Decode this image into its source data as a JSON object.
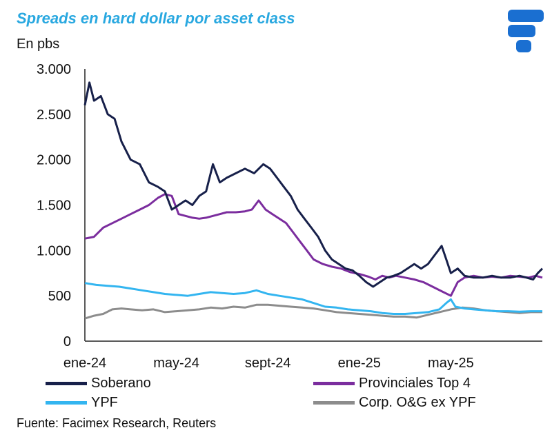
{
  "header": {
    "title": "Spreads en hard dollar por asset class",
    "unit_label": "En pbs"
  },
  "footer": {
    "source": "Fuente: Facimex Research, Reuters"
  },
  "colors": {
    "soberano": "#17204a",
    "provinciales": "#7b2d9e",
    "ypf": "#33b5f0",
    "corp": "#8c8c8c",
    "logo": "#1a6fd1"
  },
  "chart_data": {
    "type": "line",
    "title": "Spreads en hard dollar por asset class",
    "ylabel": "En pbs",
    "xlabel": "",
    "ylim": [
      0,
      3000
    ],
    "yticks": [
      0,
      500,
      1000,
      1500,
      2000,
      2500,
      3000
    ],
    "ytick_labels": [
      "0",
      "500",
      "1.000",
      "1.500",
      "2.000",
      "2.500",
      "3.000"
    ],
    "xlim": [
      0,
      20
    ],
    "xticks": [
      0,
      4,
      8,
      12,
      16
    ],
    "xtick_labels": [
      "ene-24",
      "may-24",
      "sept-24",
      "ene-25",
      "may-25"
    ],
    "x_unit": "months since Jan-2024",
    "legend_position": "bottom",
    "series": [
      {
        "name": "Soberano",
        "color": "#17204a",
        "points": [
          [
            0,
            2600
          ],
          [
            0.2,
            2850
          ],
          [
            0.4,
            2650
          ],
          [
            0.7,
            2700
          ],
          [
            1.0,
            2500
          ],
          [
            1.3,
            2450
          ],
          [
            1.6,
            2200
          ],
          [
            2.0,
            2000
          ],
          [
            2.4,
            1950
          ],
          [
            2.8,
            1750
          ],
          [
            3.2,
            1700
          ],
          [
            3.5,
            1650
          ],
          [
            3.8,
            1450
          ],
          [
            4.1,
            1500
          ],
          [
            4.4,
            1550
          ],
          [
            4.7,
            1500
          ],
          [
            5.0,
            1600
          ],
          [
            5.3,
            1650
          ],
          [
            5.6,
            1950
          ],
          [
            5.9,
            1750
          ],
          [
            6.2,
            1800
          ],
          [
            6.6,
            1850
          ],
          [
            7.0,
            1900
          ],
          [
            7.4,
            1850
          ],
          [
            7.8,
            1950
          ],
          [
            8.1,
            1900
          ],
          [
            8.4,
            1800
          ],
          [
            8.7,
            1700
          ],
          [
            9.0,
            1600
          ],
          [
            9.3,
            1450
          ],
          [
            9.6,
            1350
          ],
          [
            9.9,
            1250
          ],
          [
            10.2,
            1150
          ],
          [
            10.5,
            1000
          ],
          [
            10.8,
            900
          ],
          [
            11.1,
            850
          ],
          [
            11.4,
            800
          ],
          [
            11.7,
            780
          ],
          [
            12.0,
            720
          ],
          [
            12.3,
            650
          ],
          [
            12.6,
            600
          ],
          [
            12.9,
            650
          ],
          [
            13.2,
            700
          ],
          [
            13.5,
            720
          ],
          [
            13.8,
            750
          ],
          [
            14.1,
            800
          ],
          [
            14.4,
            850
          ],
          [
            14.7,
            800
          ],
          [
            15.0,
            850
          ],
          [
            15.3,
            950
          ],
          [
            15.6,
            1050
          ],
          [
            15.8,
            900
          ],
          [
            16.0,
            750
          ],
          [
            16.3,
            800
          ],
          [
            16.6,
            720
          ],
          [
            17.0,
            700
          ],
          [
            17.4,
            700
          ],
          [
            17.8,
            720
          ],
          [
            18.2,
            700
          ],
          [
            18.6,
            700
          ],
          [
            19.0,
            720
          ],
          [
            19.3,
            700
          ],
          [
            19.6,
            680
          ],
          [
            19.8,
            750
          ],
          [
            20.0,
            800
          ]
        ]
      },
      {
        "name": "Provinciales Top 4",
        "color": "#7b2d9e",
        "points": [
          [
            0,
            1130
          ],
          [
            0.4,
            1150
          ],
          [
            0.8,
            1250
          ],
          [
            1.2,
            1300
          ],
          [
            1.6,
            1350
          ],
          [
            2.0,
            1400
          ],
          [
            2.4,
            1450
          ],
          [
            2.8,
            1500
          ],
          [
            3.2,
            1580
          ],
          [
            3.5,
            1620
          ],
          [
            3.8,
            1600
          ],
          [
            4.1,
            1400
          ],
          [
            4.4,
            1380
          ],
          [
            4.7,
            1360
          ],
          [
            5.0,
            1350
          ],
          [
            5.3,
            1360
          ],
          [
            5.6,
            1380
          ],
          [
            5.9,
            1400
          ],
          [
            6.2,
            1420
          ],
          [
            6.6,
            1420
          ],
          [
            7.0,
            1430
          ],
          [
            7.3,
            1450
          ],
          [
            7.6,
            1550
          ],
          [
            7.9,
            1450
          ],
          [
            8.2,
            1400
          ],
          [
            8.5,
            1350
          ],
          [
            8.8,
            1300
          ],
          [
            9.1,
            1200
          ],
          [
            9.4,
            1100
          ],
          [
            9.7,
            1000
          ],
          [
            10.0,
            900
          ],
          [
            10.4,
            850
          ],
          [
            10.8,
            820
          ],
          [
            11.2,
            800
          ],
          [
            11.6,
            760
          ],
          [
            12.0,
            740
          ],
          [
            12.4,
            710
          ],
          [
            12.7,
            680
          ],
          [
            13.0,
            720
          ],
          [
            13.3,
            700
          ],
          [
            13.6,
            720
          ],
          [
            14.0,
            700
          ],
          [
            14.4,
            680
          ],
          [
            14.8,
            650
          ],
          [
            15.2,
            600
          ],
          [
            15.6,
            550
          ],
          [
            16.0,
            500
          ],
          [
            16.3,
            650
          ],
          [
            16.6,
            700
          ],
          [
            17.0,
            720
          ],
          [
            17.4,
            700
          ],
          [
            17.8,
            710
          ],
          [
            18.2,
            700
          ],
          [
            18.6,
            720
          ],
          [
            19.0,
            710
          ],
          [
            19.4,
            700
          ],
          [
            19.7,
            720
          ],
          [
            20.0,
            700
          ]
        ]
      },
      {
        "name": "YPF",
        "color": "#33b5f0",
        "points": [
          [
            0,
            640
          ],
          [
            0.5,
            620
          ],
          [
            1.0,
            610
          ],
          [
            1.5,
            600
          ],
          [
            2.0,
            580
          ],
          [
            2.5,
            560
          ],
          [
            3.0,
            540
          ],
          [
            3.5,
            520
          ],
          [
            4.0,
            510
          ],
          [
            4.5,
            500
          ],
          [
            5.0,
            520
          ],
          [
            5.5,
            540
          ],
          [
            6.0,
            530
          ],
          [
            6.5,
            520
          ],
          [
            7.0,
            530
          ],
          [
            7.5,
            560
          ],
          [
            8.0,
            520
          ],
          [
            8.5,
            500
          ],
          [
            9.0,
            480
          ],
          [
            9.5,
            460
          ],
          [
            10.0,
            420
          ],
          [
            10.5,
            380
          ],
          [
            11.0,
            370
          ],
          [
            11.5,
            350
          ],
          [
            12.0,
            340
          ],
          [
            12.5,
            330
          ],
          [
            13.0,
            310
          ],
          [
            13.5,
            300
          ],
          [
            14.0,
            300
          ],
          [
            14.5,
            310
          ],
          [
            15.0,
            320
          ],
          [
            15.5,
            350
          ],
          [
            15.8,
            420
          ],
          [
            16.0,
            460
          ],
          [
            16.2,
            380
          ],
          [
            16.6,
            360
          ],
          [
            17.0,
            350
          ],
          [
            17.5,
            340
          ],
          [
            18.0,
            330
          ],
          [
            18.5,
            330
          ],
          [
            19.0,
            325
          ],
          [
            19.5,
            330
          ],
          [
            20.0,
            330
          ]
        ]
      },
      {
        "name": "Corp. O&G ex YPF",
        "color": "#8c8c8c",
        "points": [
          [
            0,
            250
          ],
          [
            0.4,
            280
          ],
          [
            0.8,
            300
          ],
          [
            1.2,
            350
          ],
          [
            1.6,
            360
          ],
          [
            2.0,
            350
          ],
          [
            2.5,
            340
          ],
          [
            3.0,
            350
          ],
          [
            3.5,
            320
          ],
          [
            4.0,
            330
          ],
          [
            4.5,
            340
          ],
          [
            5.0,
            350
          ],
          [
            5.5,
            370
          ],
          [
            6.0,
            360
          ],
          [
            6.5,
            380
          ],
          [
            7.0,
            370
          ],
          [
            7.5,
            400
          ],
          [
            8.0,
            400
          ],
          [
            8.5,
            390
          ],
          [
            9.0,
            380
          ],
          [
            9.5,
            370
          ],
          [
            10.0,
            360
          ],
          [
            10.5,
            340
          ],
          [
            11.0,
            320
          ],
          [
            11.5,
            310
          ],
          [
            12.0,
            300
          ],
          [
            12.5,
            290
          ],
          [
            13.0,
            280
          ],
          [
            13.5,
            270
          ],
          [
            14.0,
            270
          ],
          [
            14.5,
            260
          ],
          [
            15.0,
            290
          ],
          [
            15.5,
            320
          ],
          [
            16.0,
            350
          ],
          [
            16.5,
            370
          ],
          [
            17.0,
            360
          ],
          [
            17.5,
            340
          ],
          [
            18.0,
            330
          ],
          [
            18.5,
            320
          ],
          [
            19.0,
            310
          ],
          [
            19.5,
            320
          ],
          [
            20.0,
            320
          ]
        ]
      }
    ]
  }
}
